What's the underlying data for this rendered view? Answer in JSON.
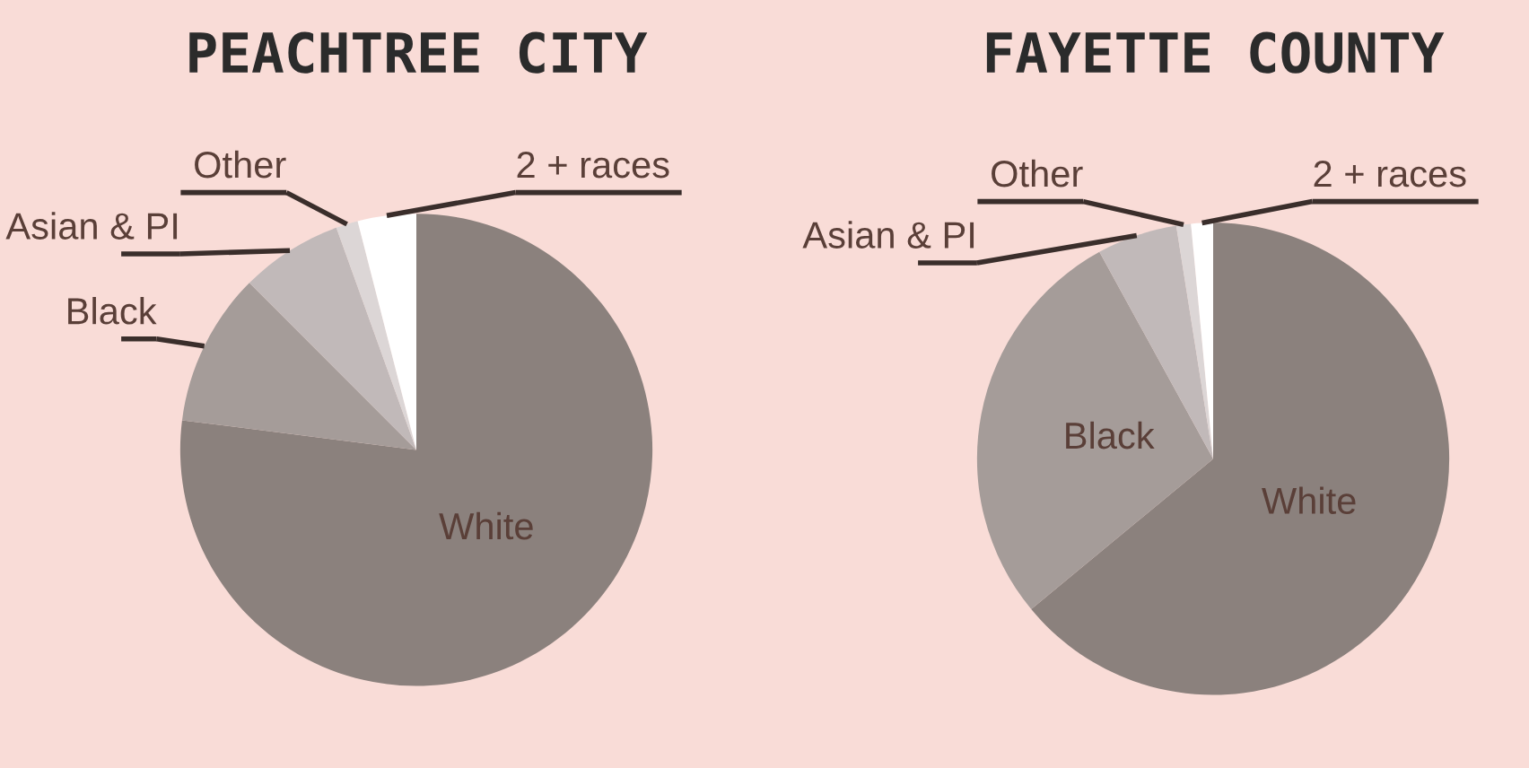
{
  "chart_data": [
    {
      "type": "pie",
      "title": "PEACHTREE CITY",
      "categories": [
        "White",
        "Black",
        "Asian & PI",
        "Other",
        "2 + races"
      ],
      "values": [
        77,
        10.5,
        7,
        1.5,
        4
      ],
      "colors": [
        "#8b817d",
        "#a59c99",
        "#c1b9b9",
        "#dcd6d6",
        "#ffffff"
      ]
    },
    {
      "type": "pie",
      "title": "FAYETTE COUNTY",
      "categories": [
        "White",
        "Black",
        "Asian & PI",
        "Other",
        "2 + races"
      ],
      "values": [
        64,
        28,
        5.5,
        1,
        1.5
      ],
      "colors": [
        "#8b817d",
        "#a59c99",
        "#c1b9b9",
        "#dcd6d6",
        "#ffffff"
      ]
    }
  ]
}
